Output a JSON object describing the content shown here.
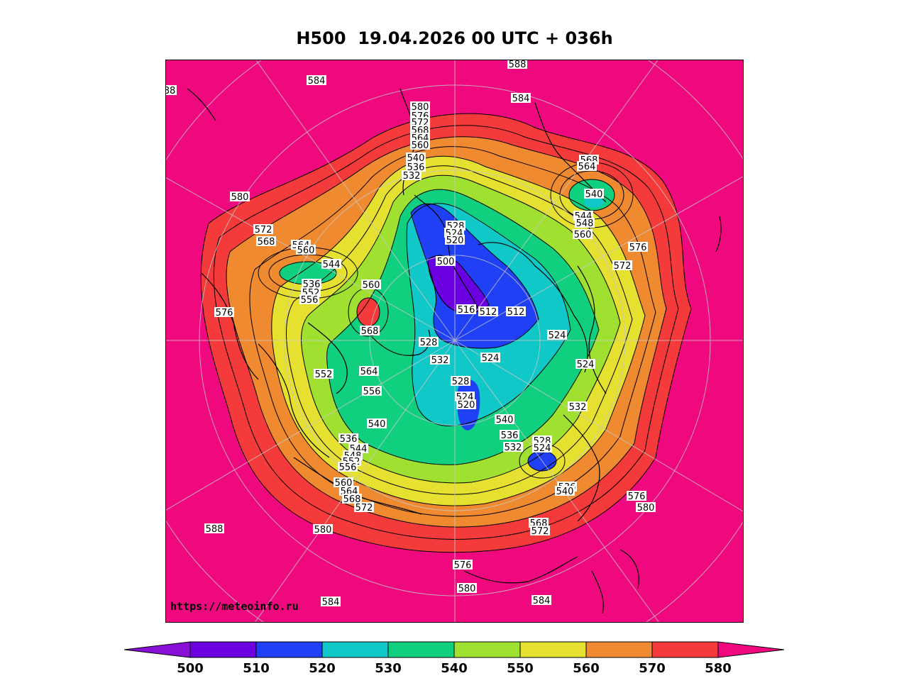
{
  "title": "H500  19.04.2026 00 UTC + 036h",
  "watermark": "https://meteoinfo.ru",
  "colorbar": {
    "ticks": [
      "500",
      "510",
      "520",
      "530",
      "540",
      "550",
      "560",
      "570",
      "580"
    ],
    "colors": [
      "#8a0fd6",
      "#6a00e0",
      "#2040f5",
      "#10c8c8",
      "#10d080",
      "#a0e030",
      "#e6e030",
      "#f08a30",
      "#f43a3a",
      "#f0087e"
    ]
  },
  "contour_labels": [
    {
      "text": "584"
    },
    {
      "text": "588"
    },
    {
      "text": "584"
    },
    {
      "text": "580"
    },
    {
      "text": "576"
    },
    {
      "text": "572"
    },
    {
      "text": "568"
    },
    {
      "text": "564"
    },
    {
      "text": "560"
    },
    {
      "text": "540"
    },
    {
      "text": "536"
    },
    {
      "text": "532"
    },
    {
      "text": "568"
    },
    {
      "text": "564"
    },
    {
      "text": "540"
    },
    {
      "text": "544"
    },
    {
      "text": "548"
    },
    {
      "text": "560"
    },
    {
      "text": "576"
    },
    {
      "text": "572"
    },
    {
      "text": "580"
    },
    {
      "text": "572"
    },
    {
      "text": "568"
    },
    {
      "text": "564"
    },
    {
      "text": "560"
    },
    {
      "text": "544"
    },
    {
      "text": "536"
    },
    {
      "text": "552"
    },
    {
      "text": "556"
    },
    {
      "text": "576"
    },
    {
      "text": "560"
    },
    {
      "text": "568"
    },
    {
      "text": "528"
    },
    {
      "text": "524"
    },
    {
      "text": "520"
    },
    {
      "text": "500"
    },
    {
      "text": "516"
    },
    {
      "text": "512"
    },
    {
      "text": "512"
    },
    {
      "text": "524"
    },
    {
      "text": "524"
    },
    {
      "text": "532"
    },
    {
      "text": "524"
    },
    {
      "text": "528"
    },
    {
      "text": "532"
    },
    {
      "text": "528"
    },
    {
      "text": "524"
    },
    {
      "text": "520"
    },
    {
      "text": "552"
    },
    {
      "text": "564"
    },
    {
      "text": "556"
    },
    {
      "text": "540"
    },
    {
      "text": "536"
    },
    {
      "text": "544"
    },
    {
      "text": "548"
    },
    {
      "text": "552"
    },
    {
      "text": "556"
    },
    {
      "text": "560"
    },
    {
      "text": "564"
    },
    {
      "text": "568"
    },
    {
      "text": "572"
    },
    {
      "text": "540"
    },
    {
      "text": "536"
    },
    {
      "text": "532"
    },
    {
      "text": "528"
    },
    {
      "text": "524"
    },
    {
      "text": "536"
    },
    {
      "text": "540"
    },
    {
      "text": "576"
    },
    {
      "text": "580"
    },
    {
      "text": "568"
    },
    {
      "text": "572"
    },
    {
      "text": "588"
    },
    {
      "text": "580"
    },
    {
      "text": "576"
    },
    {
      "text": "580"
    },
    {
      "text": "584"
    },
    {
      "text": "584"
    },
    {
      "text": "88"
    }
  ]
}
